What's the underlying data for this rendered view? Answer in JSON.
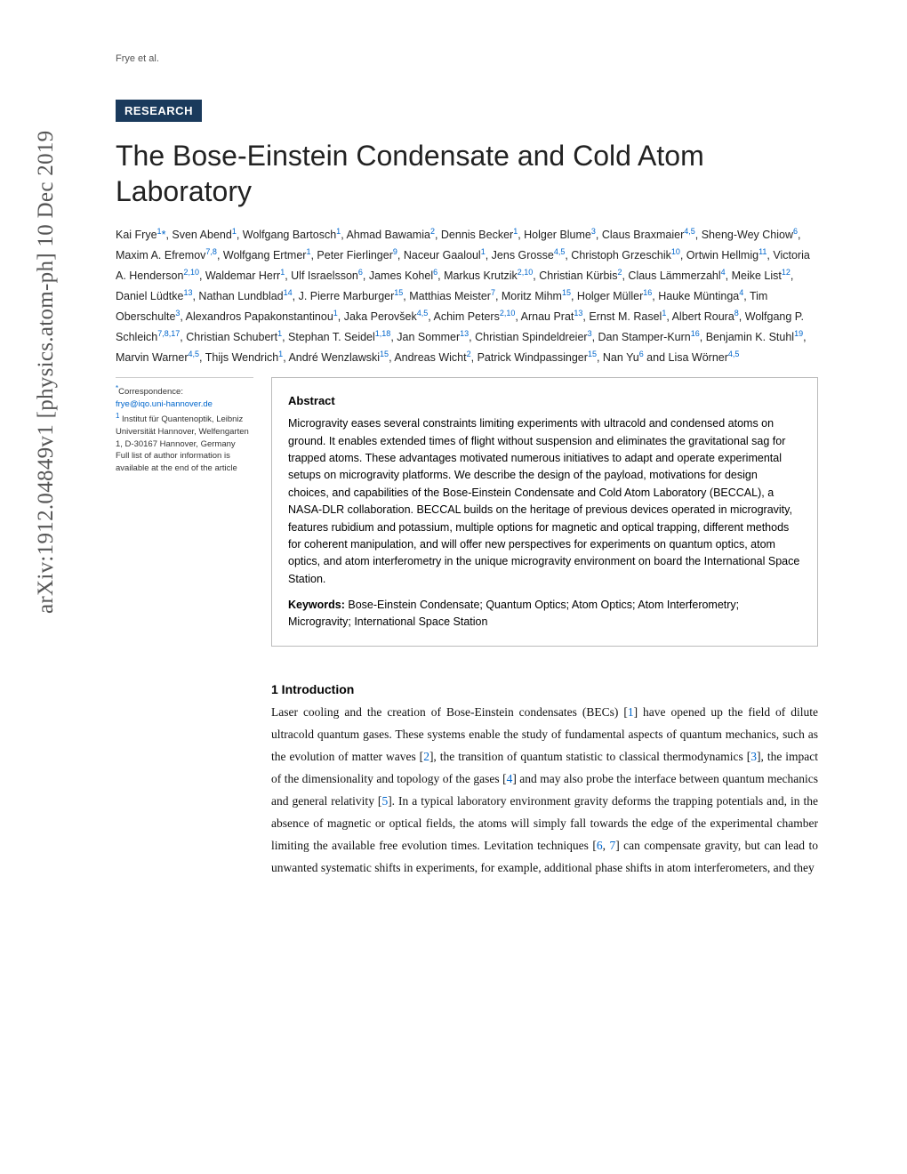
{
  "header_citation": "Frye et al.",
  "badge": "RESEARCH",
  "title": "The Bose-Einstein Condensate and Cold Atom Laboratory",
  "arxiv": "arXiv:1912.04849v1  [physics.atom-ph]  10 Dec 2019",
  "correspondence": {
    "label": "*Correspondence:",
    "email": "frye@iqo.uni-hannover.de",
    "affil_num": "1",
    "affil": " Institut für Quantenoptik, Leibniz Universität Hannover, Welfengarten 1, D-30167 Hannover, Germany",
    "note": "Full list of author information is available at the end of the article"
  },
  "abstract": {
    "title": "Abstract",
    "text": "Microgravity eases several constraints limiting experiments with ultracold and condensed atoms on ground. It enables extended times of flight without suspension and eliminates the gravitational sag for trapped atoms. These advantages motivated numerous initiatives to adapt and operate experimental setups on microgravity platforms. We describe the design of the payload, motivations for design choices, and capabilities of the Bose-Einstein Condensate and Cold Atom Laboratory (BECCAL), a NASA-DLR collaboration. BECCAL builds on the heritage of previous devices operated in microgravity, features rubidium and potassium, multiple options for magnetic and optical trapping, different methods for coherent manipulation, and will offer new perspectives for experiments on quantum optics, atom optics, and atom interferometry in the unique microgravity environment on board the International Space Station.",
    "keywords_label": "Keywords:",
    "keywords": " Bose-Einstein Condensate; Quantum Optics; Atom Optics; Atom Interferometry; Microgravity; International Space Station"
  },
  "section1": {
    "title": "1 Introduction"
  },
  "colors": {
    "badge_bg": "#1a3a5c",
    "link": "#0066cc"
  }
}
